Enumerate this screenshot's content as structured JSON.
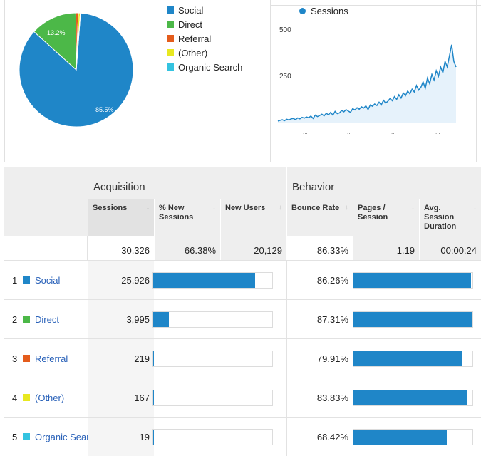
{
  "colors": {
    "social": "#1f86c8",
    "direct": "#4cb848",
    "referral": "#e45c1c",
    "other": "#e8e820",
    "organic": "#34c3e0",
    "bar": "#1f86c8",
    "link": "#2a62b9"
  },
  "pie": {
    "legend": [
      {
        "label": "Social",
        "color": "#1f86c8"
      },
      {
        "label": "Direct",
        "color": "#4cb848"
      },
      {
        "label": "Referral",
        "color": "#e45c1c"
      },
      {
        "label": "(Other)",
        "color": "#e8e820"
      },
      {
        "label": "Organic Search",
        "color": "#34c3e0"
      }
    ],
    "labels": {
      "social": "85.5%",
      "direct": "13.2%"
    }
  },
  "chart_data": [
    {
      "type": "pie",
      "title": "",
      "slices": [
        {
          "name": "Social",
          "value": 85.5
        },
        {
          "name": "Direct",
          "value": 13.2
        },
        {
          "name": "Referral",
          "value": 0.7
        },
        {
          "name": "(Other)",
          "value": 0.55
        },
        {
          "name": "Organic Search",
          "value": 0.06
        }
      ]
    },
    {
      "type": "area",
      "series": [
        {
          "name": "Sessions",
          "values": [
            8,
            12,
            15,
            10,
            18,
            14,
            20,
            22,
            16,
            25,
            20,
            28,
            24,
            30,
            26,
            35,
            22,
            40,
            32,
            38,
            45,
            36,
            50,
            42,
            55,
            40,
            60,
            48,
            52,
            65,
            58,
            70,
            62,
            55,
            75,
            68,
            80,
            72,
            85,
            78,
            90,
            70,
            95,
            88,
            100,
            92,
            110,
            95,
            120,
            105,
            115,
            130,
            118,
            140,
            125,
            150,
            132,
            160,
            145,
            170,
            155,
            180,
            165,
            200,
            175,
            190,
            220,
            185,
            240,
            210,
            260,
            230,
            280,
            250,
            300,
            270,
            330,
            300,
            360,
            420,
            330,
            300
          ]
        }
      ],
      "legend": "Sessions",
      "yticks": [
        250,
        500
      ],
      "ylim": [
        0,
        550
      ],
      "xtick_labels": [
        "...",
        "...",
        "...",
        "..."
      ]
    }
  ],
  "table": {
    "groups": {
      "acquisition": "Acquisition",
      "behavior": "Behavior"
    },
    "headers": {
      "sessions": "Sessions",
      "sessions_sort": "↓",
      "new_sessions": "% New Sessions",
      "new_users": "New Users",
      "bounce_rate": "Bounce Rate",
      "pages_session": "Pages / Session",
      "avg_duration": "Avg. Session Duration",
      "inactive_sort": "↓"
    },
    "totals": {
      "sessions": "30,326",
      "new_sessions": "66.38%",
      "new_users": "20,129",
      "bounce_rate": "86.33%",
      "pages_session": "1.19",
      "avg_duration": "00:00:24"
    },
    "rows": [
      {
        "rank": "1",
        "label": "Social",
        "sessions": "25,926",
        "sessions_pct": 0.855,
        "bounce": "86.26%",
        "bounce_pct": 0.8626,
        "color": "#1f86c8"
      },
      {
        "rank": "2",
        "label": "Direct",
        "sessions": "3,995",
        "sessions_pct": 0.132,
        "bounce": "87.31%",
        "bounce_pct": 0.8731,
        "color": "#4cb848"
      },
      {
        "rank": "3",
        "label": "Referral",
        "sessions": "219",
        "sessions_pct": 0.0072,
        "bounce": "79.91%",
        "bounce_pct": 0.7991,
        "color": "#e45c1c"
      },
      {
        "rank": "4",
        "label": "(Other)",
        "sessions": "167",
        "sessions_pct": 0.0055,
        "bounce": "83.83%",
        "bounce_pct": 0.8383,
        "color": "#e8e820"
      },
      {
        "rank": "5",
        "label": "Organic Sear",
        "sessions": "19",
        "sessions_pct": 0.0006,
        "bounce": "68.42%",
        "bounce_pct": 0.6842,
        "color": "#34c3e0"
      }
    ]
  }
}
